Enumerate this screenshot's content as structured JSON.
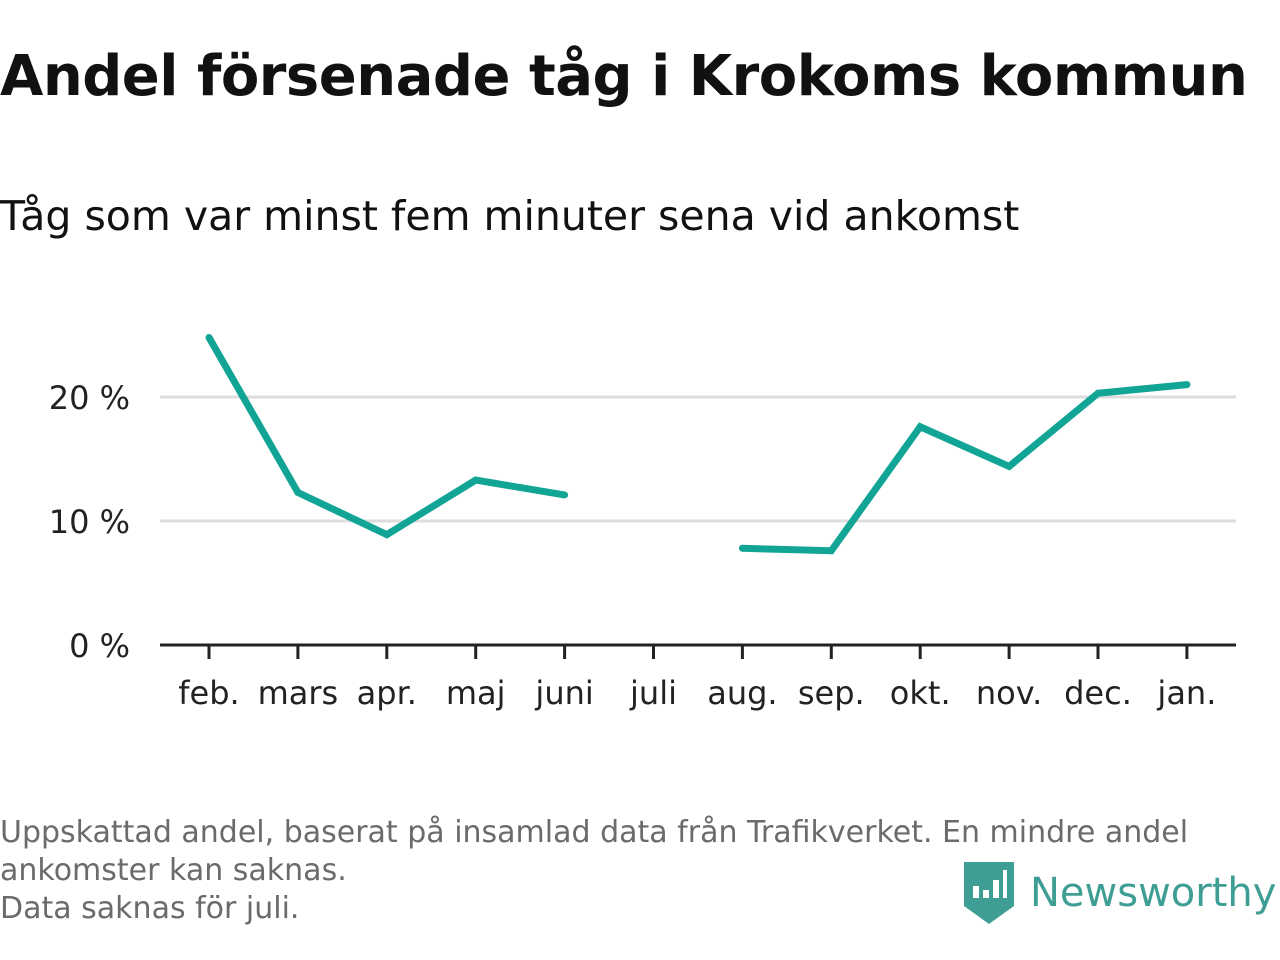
{
  "title": "Andel försenade tåg i Krokoms kommun",
  "subtitle": "Tåg som var minst fem minuter sena vid ankomst",
  "footer": {
    "line1": "Uppskattad andel, baserat på insamlad data från Trafikverket. En mindre andel",
    "line2": "ankomster kan saknas.",
    "line3": "Data saknas för juli."
  },
  "brand": {
    "name": "Newsworthy",
    "color": "#3e9e93",
    "icon": "newsworthy-logo-icon"
  },
  "chart_data": {
    "type": "line",
    "categories": [
      "feb.",
      "mars",
      "apr.",
      "maj",
      "juni",
      "juli",
      "aug.",
      "sep.",
      "okt.",
      "nov.",
      "dec.",
      "jan."
    ],
    "values": [
      24.8,
      12.3,
      8.9,
      13.3,
      12.1,
      null,
      7.8,
      7.6,
      17.6,
      14.4,
      20.3,
      21.0
    ],
    "ylim": [
      0,
      26
    ],
    "yticks": [
      0,
      10,
      20
    ],
    "ytick_labels": [
      "0 %",
      "10 %",
      "20 %"
    ],
    "grid": true,
    "line_color": "#12a596",
    "grid_color": "#dddddd"
  }
}
